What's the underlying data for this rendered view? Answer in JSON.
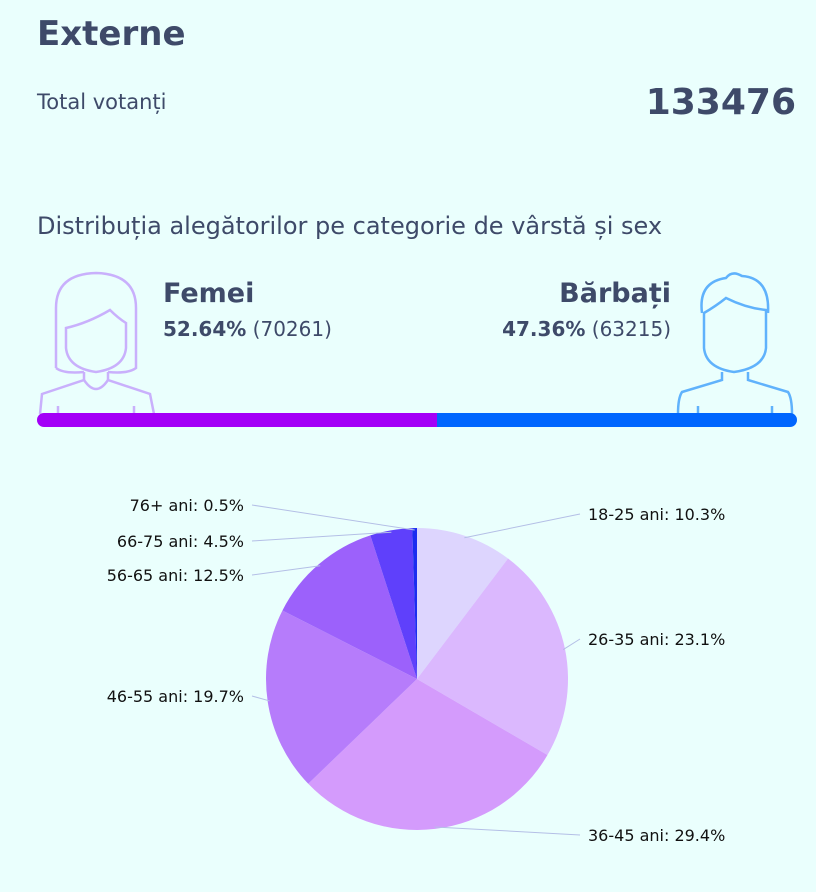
{
  "header": {
    "title": "Externe",
    "total_label": "Total votanți",
    "total_value": "133476"
  },
  "section": {
    "subtitle": "Distribuția alegătorilor pe categorie de vârstă și sex"
  },
  "female": {
    "label": "Femei",
    "percent": "52.64%",
    "count": "(70261)",
    "share": 52.64,
    "color": "#a300f7",
    "icon": "woman-avatar-icon"
  },
  "male": {
    "label": "Bărbați",
    "percent": "47.36%",
    "count": "(63215)",
    "share": 47.36,
    "color": "#0066fe",
    "icon": "man-avatar-icon"
  },
  "chart_data": {
    "type": "pie",
    "title": "",
    "categories": [
      "18-25 ani",
      "26-35 ani",
      "36-45 ani",
      "46-55 ani",
      "56-65 ani",
      "66-75 ani",
      "76+ ani"
    ],
    "values": [
      10.3,
      23.1,
      29.4,
      19.7,
      12.5,
      4.5,
      0.5
    ],
    "labels": [
      "18-25 ani: 10.3%",
      "26-35 ani: 23.1%",
      "36-45 ani: 29.4%",
      "46-55 ani: 19.7%",
      "56-65 ani: 12.5%",
      "66-75 ani: 4.5%",
      "76+ ani: 0.5%"
    ],
    "colors": [
      "#ddd5fe",
      "#dbb8fe",
      "#d49bfc",
      "#b67cfb",
      "#9c61fb",
      "#5f40fb",
      "#1b2df0"
    ]
  }
}
